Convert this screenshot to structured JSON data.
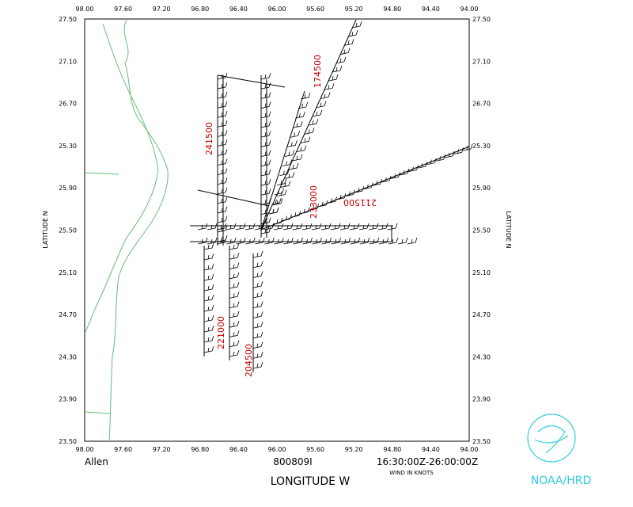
{
  "map": {
    "top_labels": [
      "98.00",
      "97.60",
      "97.20",
      "96.80",
      "96.40",
      "96.00",
      "95.60",
      "95.20",
      "94.80",
      "94.40",
      "94.00"
    ],
    "bottom_labels": [
      "98.00",
      "97.60",
      "97.20",
      "96.80",
      "96.40",
      "96.00",
      "95.60",
      "95.20",
      "94.80",
      "94.40",
      "94.00"
    ],
    "left_labels": [
      "27.50",
      "27.10",
      "26.70",
      "25.30",
      "25.90",
      "25.50",
      "25.10",
      "24.70",
      "24.30",
      "23.90",
      "23.50"
    ],
    "right_labels": [
      "27.50",
      "27.10",
      "26.70",
      "25.30",
      "25.90",
      "25.50",
      "25.10",
      "24.70",
      "24.30",
      "23.90",
      "23.50"
    ],
    "y_label_left": "LATITUDE   N",
    "y_label_right": "LATITUDE   N",
    "x_label": "LONGITUDE   W",
    "storm": "Allen",
    "flight_id": "800809I",
    "time_range": "16:30:00Z-26:00:00Z",
    "units_note": "WIND IN KNOTS",
    "logo_text": "NOAA/HRD",
    "time_labels": [
      "174500",
      "241500",
      "233000",
      "211500",
      "221000",
      "204500"
    ]
  }
}
